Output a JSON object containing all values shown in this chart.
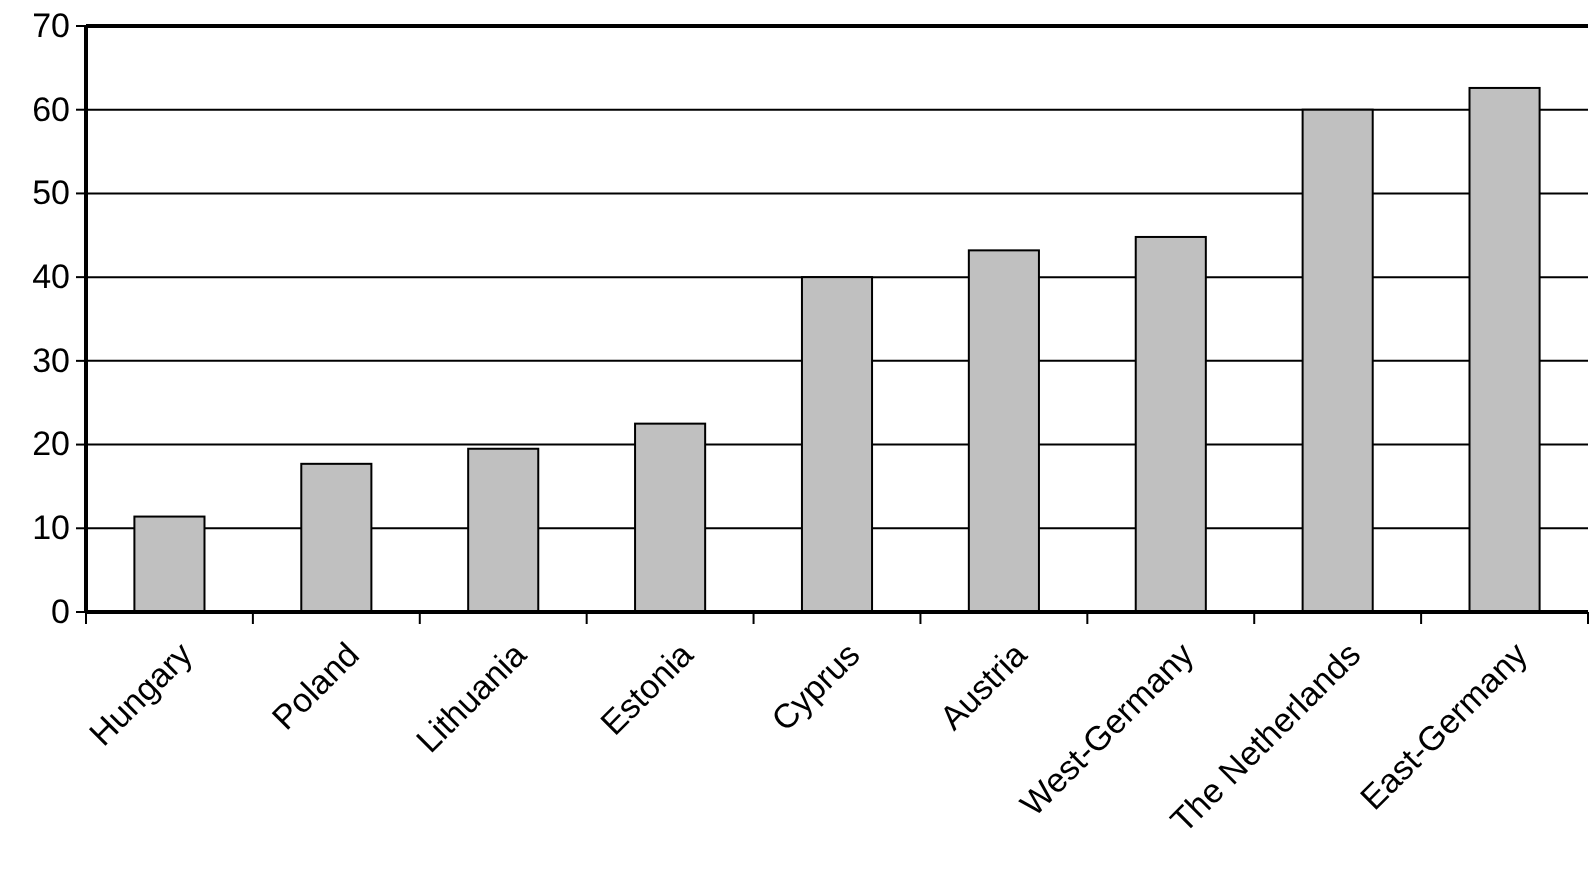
{
  "chart_data": {
    "type": "bar",
    "categories": [
      "Hungary",
      "Poland",
      "Lithuania",
      "Estonia",
      "Cyprus",
      "Austria",
      "West-Germany",
      "The Netherlands",
      "East-Germany"
    ],
    "values": [
      11.4,
      17.7,
      19.5,
      22.5,
      40.0,
      43.2,
      44.8,
      60,
      62.6
    ],
    "color": "#c0c0c0",
    "ylim": [
      0,
      70
    ],
    "yticks": [
      0,
      10,
      20,
      30,
      40,
      50,
      60,
      70
    ],
    "grid": "y"
  }
}
